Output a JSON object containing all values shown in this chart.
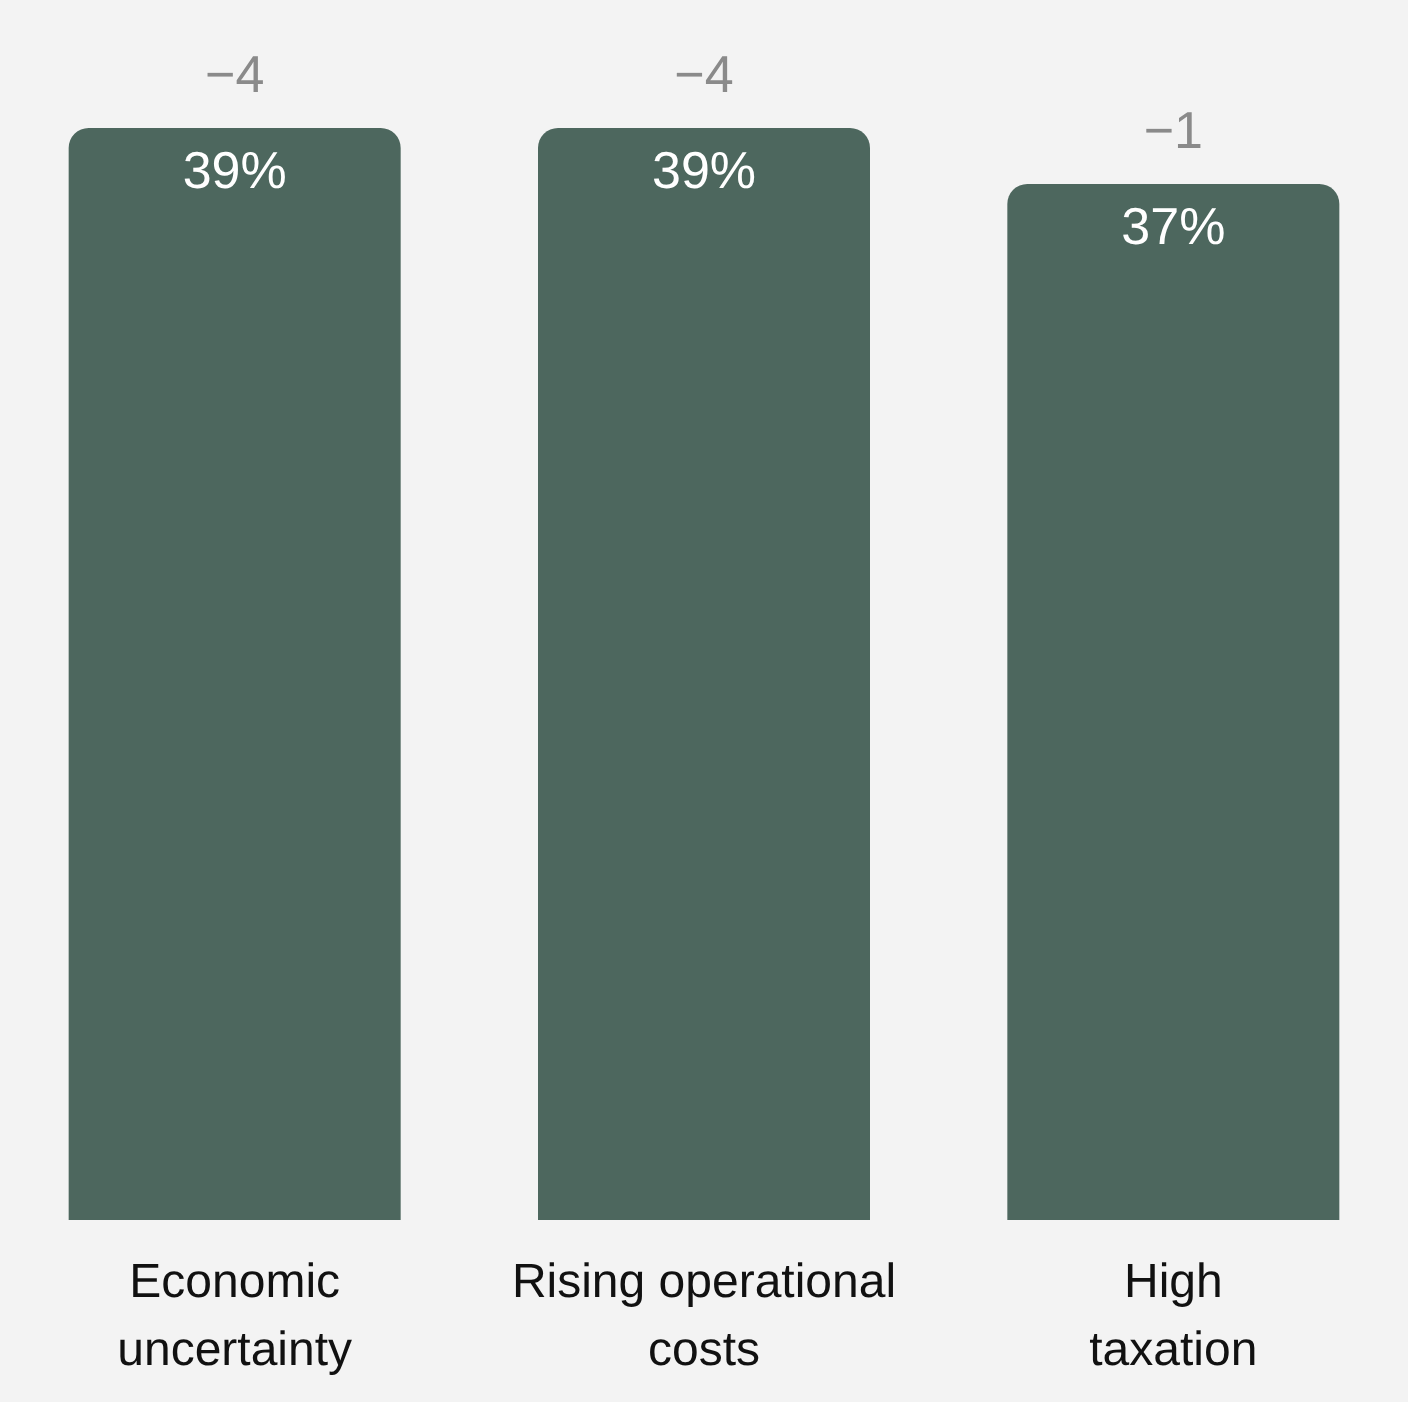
{
  "chart_data": {
    "type": "bar",
    "categories": [
      "Economic uncertainty",
      "Rising operational costs",
      "High taxation"
    ],
    "values": [
      39,
      39,
      37
    ],
    "color": "#4d675e",
    "value_labels": [
      "39%",
      "39%",
      "37%"
    ],
    "annotations": [
      {
        "text": "−4",
        "x": "Economic uncertainty",
        "y": 39
      },
      {
        "text": "−4",
        "x": "Rising operational costs",
        "y": 39
      },
      {
        "text": "−1",
        "x": "High taxation",
        "y": 37
      }
    ],
    "grid": false
  }
}
